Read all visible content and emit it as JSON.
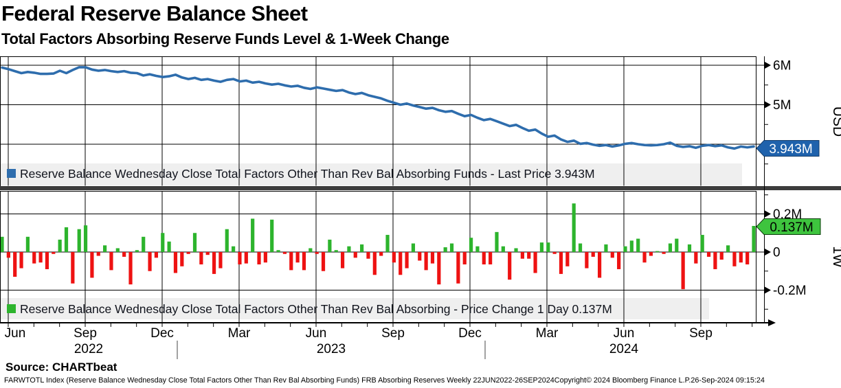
{
  "header": {
    "title": "Federal Reserve Balance Sheet",
    "subtitle": "Total Factors Absorbing Reserve Funds Level & 1-Week Change"
  },
  "top_panel": {
    "legend": "Reserve Balance Wednesday Close Total Factors Other Than Rev Bal Absorbing Funds - Last Price 3.943M",
    "axis_label": "USD",
    "last_price_badge": "3.943M"
  },
  "bottom_panel": {
    "legend": "Reserve Balance Wednesday Close Total Factors Other Than Rev Bal Absorbing - Price Change 1 Day 0.137M",
    "axis_label": "1W",
    "last_change_badge": "0.137M"
  },
  "x_axis": {
    "month_labels": [
      "Jun",
      "Sep",
      "Dec",
      "Mar",
      "Jun",
      "Sep",
      "Dec",
      "Mar",
      "Jun",
      "Sep"
    ],
    "year_labels": [
      "2022",
      "2023",
      "2024"
    ]
  },
  "source": "Source: CHARTbeat",
  "footer": {
    "left": "FARWTOTL Index (Reserve Balance Wednesday Close Total Factors Other Than Rev Bal Absorbing Funds) FRB Absorbing Reserves  Weekly 22JUN2022-26SEP2024",
    "copyright": "Copyright© 2024 Bloomberg Finance L.P.",
    "datetime": "26-Sep-2024 09:15:24"
  },
  "colors": {
    "line": "#2e6dad",
    "badge_blue": "#1f62ac",
    "positive": "#2db42d",
    "badge_green": "#3ec43e",
    "negative": "#ee1212",
    "separator": "#3c3c3c",
    "legend_band": "#efefef"
  },
  "chart_data": [
    {
      "type": "line",
      "name": "Reserve Balance Wednesday Close Total Factors Other Than Rev Bal Absorbing Funds",
      "unit": "USD",
      "frequency": "weekly",
      "range": "22JUN2022-26SEP2024",
      "last_price": 3.943,
      "ylim": [
        3.45,
        6.25
      ],
      "yticks": [
        {
          "value": 6,
          "label": "6M"
        },
        {
          "value": 5,
          "label": "5M"
        },
        {
          "value": 4,
          "label": ""
        }
      ],
      "yticks_minor": [
        5.5,
        4.5,
        3.5
      ],
      "values": [
        5.94,
        5.9,
        5.85,
        5.8,
        5.83,
        5.81,
        5.78,
        5.78,
        5.79,
        5.86,
        5.8,
        5.88,
        5.95,
        5.95,
        5.89,
        5.86,
        5.88,
        5.85,
        5.83,
        5.85,
        5.81,
        5.8,
        5.74,
        5.77,
        5.73,
        5.7,
        5.72,
        5.76,
        5.69,
        5.65,
        5.68,
        5.63,
        5.65,
        5.61,
        5.58,
        5.63,
        5.65,
        5.59,
        5.61,
        5.56,
        5.58,
        5.54,
        5.51,
        5.53,
        5.49,
        5.46,
        5.48,
        5.43,
        5.4,
        5.44,
        5.41,
        5.38,
        5.35,
        5.37,
        5.31,
        5.27,
        5.3,
        5.24,
        5.2,
        5.16,
        5.1,
        5.05,
        5.0,
        5.03,
        4.98,
        4.94,
        4.9,
        4.92,
        4.86,
        4.82,
        4.84,
        4.77,
        4.71,
        4.74,
        4.67,
        4.61,
        4.64,
        4.58,
        4.52,
        4.46,
        4.49,
        4.41,
        4.34,
        4.37,
        4.27,
        4.19,
        4.22,
        4.12,
        4.06,
        4.09,
        4.01,
        4.03,
        3.99,
        3.96,
        3.98,
        3.94,
        3.97,
        4.01,
        4.03,
        4.0,
        3.98,
        3.97,
        3.98,
        4.0,
        4.04,
        3.96,
        3.93,
        3.95,
        3.91,
        3.96,
        3.98,
        3.95,
        3.97,
        3.92,
        3.89,
        3.94,
        3.92,
        3.943
      ]
    },
    {
      "type": "bar",
      "name": "Reserve Balance Wednesday Close Total Factors Other Than Rev Bal Absorbing - Price Change 1 Day",
      "unit": "USD (1-week change)",
      "frequency": "weekly",
      "range": "22JUN2022-26SEP2024",
      "last_value": 0.137,
      "ylim": [
        -0.38,
        0.33
      ],
      "yticks": [
        {
          "value": 0.2,
          "label": "0.2M"
        },
        {
          "value": 0,
          "label": "0"
        },
        {
          "value": -0.2,
          "label": "-0.2M"
        }
      ],
      "yticks_minor": [
        0.3,
        0.1,
        -0.1,
        -0.3
      ],
      "values": [
        0.08,
        -0.03,
        -0.13,
        -0.085,
        0.08,
        -0.06,
        -0.055,
        -0.09,
        -0.01,
        0.065,
        0.13,
        -0.165,
        0.12,
        0.14,
        -0.135,
        -0.02,
        0.035,
        -0.095,
        0.02,
        -0.025,
        -0.17,
        0.01,
        0.08,
        -0.1,
        -0.03,
        0.1,
        0.055,
        -0.11,
        -0.075,
        -0.01,
        0.1,
        -0.065,
        -0.015,
        -0.115,
        -0.085,
        0.12,
        0.03,
        -0.065,
        -0.06,
        0.175,
        -0.065,
        -0.055,
        0.17,
        0.01,
        -0.01,
        -0.095,
        -0.055,
        -0.095,
        0.02,
        -0.01,
        -0.1,
        0.065,
        0.01,
        -0.085,
        0.03,
        -0.03,
        0.04,
        -0.035,
        -0.12,
        -0.02,
        0.09,
        -0.055,
        -0.12,
        -0.085,
        0.045,
        -0.045,
        -0.095,
        -0.06,
        -0.17,
        0.025,
        0.045,
        -0.165,
        -0.065,
        0.075,
        0.03,
        -0.065,
        -0.065,
        0.105,
        0.03,
        -0.145,
        0.02,
        -0.035,
        -0.035,
        -0.11,
        0.05,
        0.05,
        -0.01,
        -0.115,
        -0.075,
        0.255,
        0.045,
        -0.085,
        -0.025,
        -0.135,
        0.04,
        -0.03,
        -0.09,
        0.03,
        0.06,
        0.07,
        -0.055,
        -0.02,
        0.005,
        -0.01,
        0.045,
        0.07,
        -0.195,
        0.04,
        -0.06,
        0.09,
        -0.025,
        -0.09,
        -0.04,
        0.035,
        -0.075,
        -0.055,
        -0.065,
        0.137
      ]
    }
  ]
}
